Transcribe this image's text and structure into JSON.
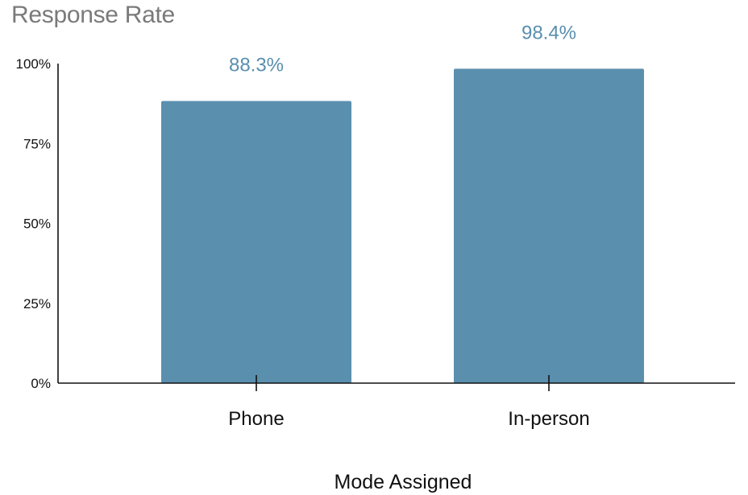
{
  "colors": {
    "bar": "#5a8fae",
    "data_label": "#5a8fae",
    "title": "#7a7a7a",
    "axis": "#111111"
  },
  "chart_data": {
    "type": "bar",
    "title": "Response Rate",
    "xlabel": "Mode Assigned",
    "ylabel": "",
    "categories": [
      "Phone",
      "In-person"
    ],
    "values": [
      88.3,
      98.4
    ],
    "data_labels": [
      "88.3%",
      "98.4%"
    ],
    "ylim": [
      0,
      100
    ],
    "yticks": [
      0,
      25,
      50,
      75,
      100
    ],
    "ytick_labels": [
      "0%",
      "25%",
      "50%",
      "75%",
      "100%"
    ],
    "grid": false,
    "legend": "none"
  }
}
